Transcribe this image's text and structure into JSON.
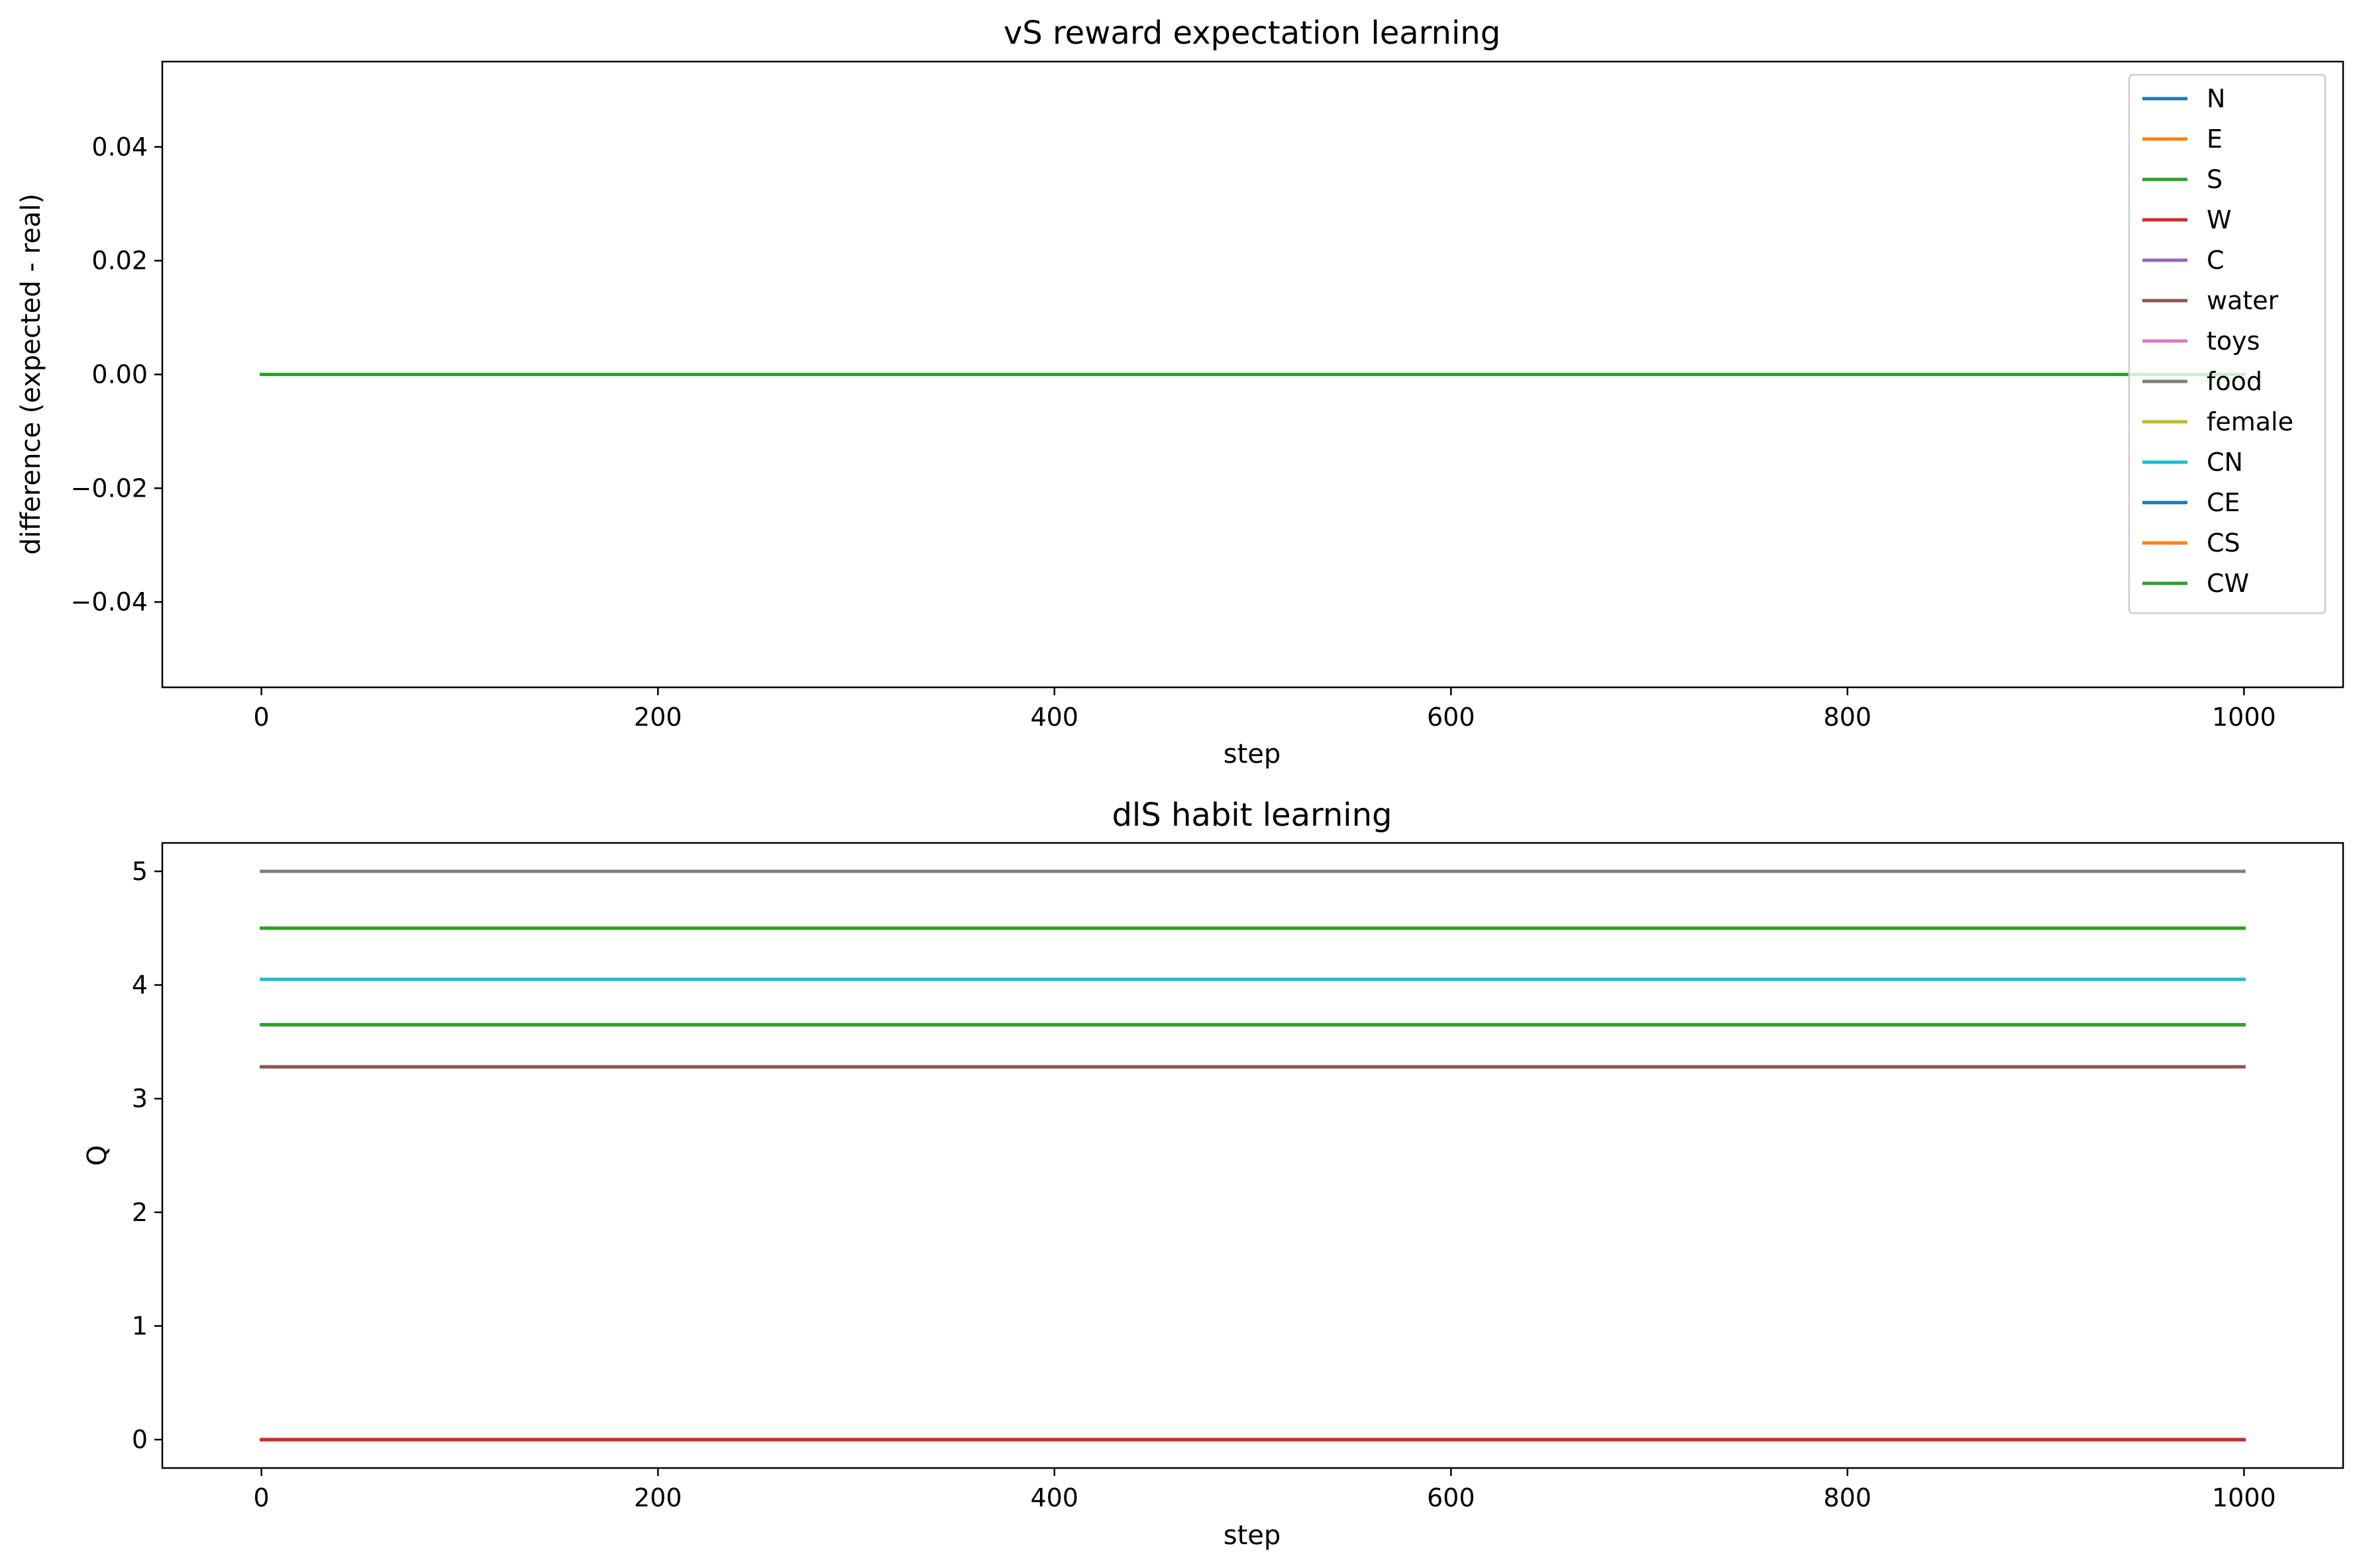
{
  "chart_data": [
    {
      "type": "line",
      "title": "vS reward expectation learning",
      "xlabel": "step",
      "ylabel": "difference (expected - real)",
      "xlim": [
        -50,
        1050
      ],
      "ylim": [
        -0.055,
        0.055
      ],
      "xticks": [
        0,
        200,
        400,
        600,
        800,
        1000
      ],
      "xtick_labels": [
        "0",
        "200",
        "400",
        "600",
        "800",
        "1000"
      ],
      "yticks": [
        -0.04,
        -0.02,
        0.0,
        0.02,
        0.04
      ],
      "ytick_labels": [
        "−0.04",
        "−0.02",
        "0.00",
        "0.02",
        "0.04"
      ],
      "grid": false,
      "legend_position": "top-right",
      "series": [
        {
          "name": "N",
          "color": "#1f77b4",
          "x": [
            0,
            1000
          ],
          "y": [
            0,
            0
          ]
        },
        {
          "name": "E",
          "color": "#ff7f0e",
          "x": [
            0,
            1000
          ],
          "y": [
            0,
            0
          ]
        },
        {
          "name": "S",
          "color": "#2ca02c",
          "x": [
            0,
            1000
          ],
          "y": [
            0,
            0
          ]
        },
        {
          "name": "W",
          "color": "#d62728",
          "x": [
            0,
            1000
          ],
          "y": [
            0,
            0
          ]
        },
        {
          "name": "C",
          "color": "#9467bd",
          "x": [
            0,
            1000
          ],
          "y": [
            0,
            0
          ]
        },
        {
          "name": "water",
          "color": "#8c564b",
          "x": [
            0,
            1000
          ],
          "y": [
            0,
            0
          ]
        },
        {
          "name": "toys",
          "color": "#e377c2",
          "x": [
            0,
            1000
          ],
          "y": [
            0,
            0
          ]
        },
        {
          "name": "food",
          "color": "#7f7f7f",
          "x": [
            0,
            1000
          ],
          "y": [
            0,
            0
          ]
        },
        {
          "name": "female",
          "color": "#bcbd22",
          "x": [
            0,
            1000
          ],
          "y": [
            0,
            0
          ]
        },
        {
          "name": "CN",
          "color": "#17becf",
          "x": [
            0,
            1000
          ],
          "y": [
            0,
            0
          ]
        },
        {
          "name": "CE",
          "color": "#1f77b4",
          "x": [
            0,
            1000
          ],
          "y": [
            0,
            0
          ]
        },
        {
          "name": "CS",
          "color": "#ff7f0e",
          "x": [
            0,
            1000
          ],
          "y": [
            0,
            0
          ]
        },
        {
          "name": "CW",
          "color": "#2ca02c",
          "x": [
            0,
            1000
          ],
          "y": [
            0,
            0
          ]
        }
      ]
    },
    {
      "type": "line",
      "title": "dlS habit learning",
      "xlabel": "step",
      "ylabel": "Q",
      "xlim": [
        -50,
        1050
      ],
      "ylim": [
        -0.25,
        5.25
      ],
      "xticks": [
        0,
        200,
        400,
        600,
        800,
        1000
      ],
      "xtick_labels": [
        "0",
        "200",
        "400",
        "600",
        "800",
        "1000"
      ],
      "yticks": [
        0,
        1,
        2,
        3,
        4,
        5
      ],
      "ytick_labels": [
        "0",
        "1",
        "2",
        "3",
        "4",
        "5"
      ],
      "grid": false,
      "series": [
        {
          "color": "#1f77b4",
          "x": [
            0,
            1000
          ],
          "y": [
            0,
            0
          ]
        },
        {
          "color": "#ff7f0e",
          "x": [
            0,
            1000
          ],
          "y": [
            0,
            0
          ]
        },
        {
          "color": "#2ca02c",
          "x": [
            0,
            1000
          ],
          "y": [
            0,
            0
          ]
        },
        {
          "color": "#d62728",
          "x": [
            0,
            1000
          ],
          "y": [
            0,
            0
          ]
        },
        {
          "color": "#9467bd",
          "x": [
            0,
            1000
          ],
          "y": [
            3.28,
            3.28
          ]
        },
        {
          "color": "#8c564b",
          "x": [
            0,
            1000
          ],
          "y": [
            3.28,
            3.28
          ]
        },
        {
          "color": "#e377c2",
          "x": [
            0,
            1000
          ],
          "y": [
            3.65,
            3.65
          ]
        },
        {
          "color": "#7f7f7f",
          "x": [
            0,
            1000
          ],
          "y": [
            5.0,
            5.0
          ]
        },
        {
          "color": "#bcbd22",
          "x": [
            0,
            1000
          ],
          "y": [
            4.05,
            4.05
          ]
        },
        {
          "color": "#17becf",
          "x": [
            0,
            1000
          ],
          "y": [
            4.05,
            4.05
          ]
        },
        {
          "color": "#1f77b4",
          "x": [
            0,
            1000
          ],
          "y": [
            3.65,
            3.65
          ]
        },
        {
          "color": "#ff7f0e",
          "x": [
            0,
            1000
          ],
          "y": [
            4.5,
            4.5
          ]
        },
        {
          "color": "#2ca02c",
          "x": [
            0,
            1000
          ],
          "y": [
            3.65,
            3.65
          ]
        },
        {
          "color": "#2ca02c",
          "x": [
            0,
            1000
          ],
          "y": [
            4.5,
            4.5
          ]
        },
        {
          "color": "#d62728",
          "x": [
            0,
            1000
          ],
          "y": [
            0,
            0
          ]
        }
      ]
    }
  ]
}
